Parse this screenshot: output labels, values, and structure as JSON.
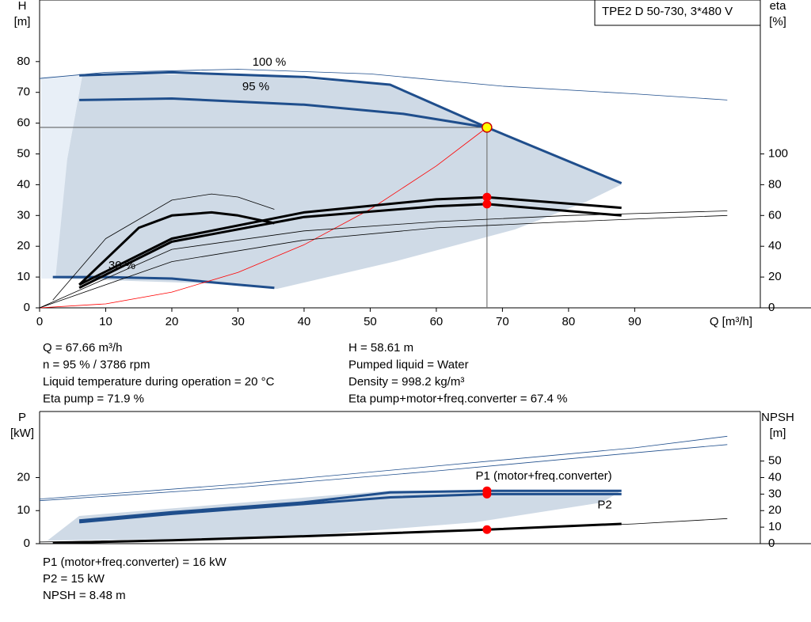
{
  "chart_data": [
    {
      "type": "line",
      "title": "TPE2 D 50-730, 3*480 V",
      "y_label": [
        "H",
        "[m]"
      ],
      "y2_label": [
        "eta",
        "[%]"
      ],
      "x_label": "Q [m³/h]",
      "xlim": [
        0,
        109
      ],
      "xticks": [
        0,
        10,
        20,
        30,
        40,
        50,
        60,
        70,
        80,
        90
      ],
      "ylim": [
        0,
        100
      ],
      "yticks": [
        0,
        10,
        20,
        30,
        40,
        50,
        60,
        70,
        80
      ],
      "y2lim": [
        0,
        200
      ],
      "y2ticks": [
        0,
        20,
        40,
        60,
        80,
        100
      ],
      "annotations": [
        "100 %",
        "95 %",
        "30 %"
      ],
      "operating_point": {
        "x": 67.66,
        "y": 58.61
      },
      "series": [
        {
          "color": "#1f4e8c",
          "style": "thin",
          "x": [
            0,
            10,
            30,
            50,
            70,
            90,
            104
          ],
          "values": [
            74.5,
            76.5,
            77.5,
            76,
            72,
            69.5,
            67.5
          ]
        },
        {
          "color": "#1f4e8c",
          "style": "thick",
          "x": [
            6,
            20,
            40,
            53,
            67.66,
            88
          ],
          "values": [
            75.5,
            76.5,
            75,
            72.5,
            58.61,
            40.5
          ]
        },
        {
          "color": "#1f4e8c",
          "style": "thick",
          "x": [
            6,
            20,
            40,
            55,
            67.66
          ],
          "values": [
            67.5,
            68,
            66,
            63,
            58.61
          ]
        },
        {
          "color": "#1f4e8c",
          "style": "thick",
          "x": [
            2,
            10,
            20,
            30,
            35.5
          ],
          "values": [
            10,
            10,
            9.5,
            7.5,
            6.5
          ]
        },
        {
          "color": "#ff0000",
          "style": "thin",
          "x": [
            0,
            10,
            20,
            30,
            40,
            50,
            60,
            67.66
          ],
          "values": [
            0,
            1.28,
            5.12,
            11.52,
            20.48,
            32.01,
            46.09,
            58.61
          ]
        },
        {
          "color": "#000000",
          "style": "thin",
          "axis": "y2",
          "x": [
            0,
            20,
            40,
            60,
            80,
            104
          ],
          "values": [
            0,
            38,
            50,
            56,
            60,
            63
          ]
        },
        {
          "color": "#000000",
          "style": "thin",
          "axis": "y2",
          "x": [
            0,
            20,
            40,
            60,
            80,
            104
          ],
          "values": [
            0,
            30,
            44,
            52,
            56,
            60
          ]
        },
        {
          "color": "#000000",
          "style": "thin",
          "axis": "y2",
          "x": [
            2,
            10,
            20,
            26,
            30,
            35.5
          ],
          "values": [
            5,
            45,
            70,
            74,
            72,
            64
          ]
        },
        {
          "color": "#000000",
          "style": "thick",
          "axis": "y2",
          "x": [
            6,
            15,
            20,
            26,
            30,
            35.5
          ],
          "values": [
            15,
            52,
            60,
            62,
            60,
            55
          ]
        },
        {
          "color": "#000000",
          "style": "thick",
          "axis": "y2",
          "x": [
            6,
            20,
            40,
            60,
            67.66,
            88
          ],
          "values": [
            15,
            45,
            62,
            70.5,
            71.9,
            65
          ]
        },
        {
          "color": "#000000",
          "style": "thick",
          "axis": "y2",
          "x": [
            6,
            20,
            40,
            60,
            67.66,
            88
          ],
          "values": [
            13,
            43,
            59,
            66,
            67.4,
            60
          ]
        }
      ]
    },
    {
      "type": "line",
      "y_label": [
        "P",
        "[kW]"
      ],
      "y2_label": [
        "NPSH",
        "[m]"
      ],
      "xlim": [
        0,
        109
      ],
      "ylim": [
        0,
        40
      ],
      "yticks": [
        0,
        10,
        20
      ],
      "y2lim": [
        0,
        80
      ],
      "y2ticks": [
        0,
        10,
        20,
        30,
        40,
        50
      ],
      "series": [
        {
          "color": "#1f4e8c",
          "style": "thin",
          "x": [
            0,
            30,
            60,
            90,
            104
          ],
          "values": [
            13.5,
            18,
            23.5,
            29,
            32.5
          ]
        },
        {
          "color": "#1f4e8c",
          "style": "thin",
          "x": [
            0,
            30,
            60,
            90,
            104
          ],
          "values": [
            13,
            17,
            22,
            27.5,
            30
          ]
        },
        {
          "name": "P1 (motor+freq.converter)",
          "color": "#1f4e8c",
          "style": "thick",
          "x": [
            6,
            20,
            40,
            53,
            67.66,
            88
          ],
          "values": [
            7,
            9.5,
            12.5,
            15.5,
            16,
            16
          ]
        },
        {
          "name": "P2",
          "color": "#1f4e8c",
          "style": "thick",
          "x": [
            6,
            20,
            40,
            53,
            67.66,
            88
          ],
          "values": [
            6.5,
            9,
            12,
            14,
            15,
            15
          ]
        },
        {
          "color": "#000000",
          "style": "thin",
          "axis": "y2",
          "x": [
            0,
            30,
            60,
            90,
            104
          ],
          "values": [
            1,
            3,
            7,
            12,
            15.2
          ]
        },
        {
          "color": "#000000",
          "style": "thick",
          "axis": "y2",
          "x": [
            2,
            20,
            40,
            67.66,
            88
          ],
          "values": [
            0.5,
            2,
            4.5,
            8.48,
            12
          ]
        }
      ]
    }
  ],
  "info_top_left": [
    "Q = 67.66 m³/h",
    "n = 95 % / 3786 rpm",
    "Liquid temperature during operation = 20 °C",
    "Eta pump = 71.9 %"
  ],
  "info_top_right": [
    "H = 58.61 m",
    "Pumped liquid = Water",
    "Density = 998.2 kg/m³",
    "Eta pump+motor+freq.converter = 67.4 %"
  ],
  "info_bottom": [
    "P1 (motor+freq.converter) = 16 kW",
    "P2 = 15 kW",
    "NPSH = 8.48 m"
  ]
}
